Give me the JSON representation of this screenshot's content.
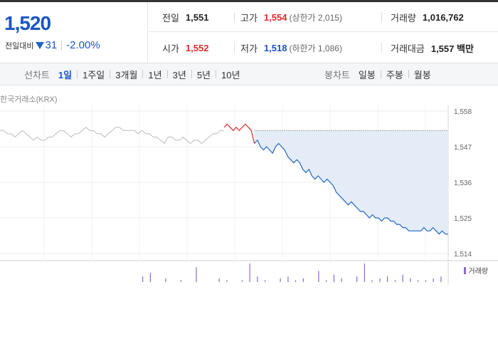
{
  "summary": {
    "price": "1,520",
    "change_label": "전일대비",
    "change_value": "31",
    "change_rate": "-2.00%",
    "prev_label": "전일",
    "prev_value": "1,551",
    "high_label": "고가",
    "high_value": "1,554",
    "high_sub": "(상한가 2,015)",
    "volume_label": "거래량",
    "volume_value": "1,016,762",
    "open_label": "시가",
    "open_value": "1,552",
    "low_label": "저가",
    "low_value": "1,518",
    "low_sub": "(하한가 1,086)",
    "amount_label": "거래대금",
    "amount_value": "1,557 백만"
  },
  "tabs": {
    "line_label": "선차트",
    "line_items": [
      "1일",
      "1주일",
      "3개월",
      "1년",
      "3년",
      "5년",
      "10년"
    ],
    "line_active": "1일",
    "candle_label": "봉차트",
    "candle_items": [
      "일봉",
      "주봉",
      "월봉"
    ]
  },
  "chart": {
    "source_label": "한국거래소(KRX)",
    "volume_legend": "거래량",
    "colors": {
      "up": "#e0282e",
      "down": "#2265c5",
      "pre": "#bbbbbb",
      "fill": "#e4ecf8",
      "volume": "#8a6ad0"
    }
  },
  "chart_data": {
    "type": "line",
    "y_ticks": [
      "1,558",
      "1,547",
      "1,536",
      "1,525",
      "1,514"
    ],
    "ylim": [
      1514,
      1558
    ],
    "reference_value": 1551,
    "premarket_values": [
      1552,
      1552,
      1551,
      1551,
      1550,
      1551,
      1552,
      1551,
      1550,
      1549,
      1550,
      1549,
      1549,
      1550,
      1550,
      1551,
      1552,
      1552,
      1551,
      1550,
      1551,
      1551,
      1552,
      1553,
      1552,
      1552,
      1551,
      1551,
      1550,
      1551,
      1552,
      1553,
      1553,
      1552,
      1552,
      1552,
      1552,
      1551,
      1552,
      1551,
      1551,
      1550,
      1550,
      1549,
      1548,
      1550,
      1550,
      1549,
      1549,
      1550,
      1549,
      1548,
      1549,
      1549,
      1548,
      1549,
      1550,
      1551,
      1551,
      1552,
      1552
    ],
    "intraday_values": [
      1553,
      1554,
      1553,
      1552,
      1553,
      1552,
      1553,
      1554,
      1553,
      1552,
      1548,
      1549,
      1547,
      1546,
      1547,
      1546,
      1545,
      1547,
      1548,
      1547,
      1546,
      1544,
      1543,
      1542,
      1543,
      1542,
      1540,
      1539,
      1540,
      1538,
      1537,
      1538,
      1537,
      1536,
      1537,
      1536,
      1535,
      1533,
      1532,
      1531,
      1530,
      1529,
      1530,
      1529,
      1528,
      1527,
      1527,
      1526,
      1525,
      1526,
      1525,
      1525,
      1524,
      1525,
      1525,
      1524,
      1524,
      1523,
      1523,
      1522,
      1522,
      1521,
      1521,
      1521,
      1521,
      1521,
      1522,
      1521,
      1521,
      1522,
      1521,
      1520,
      1521,
      1520,
      1520
    ],
    "volume_bars": [
      0.3,
      0.5,
      0,
      0.2,
      0,
      0.1,
      0,
      0.8,
      0,
      0,
      0.2,
      0.1,
      0,
      0.1,
      1.0,
      0.3,
      0.1,
      0,
      0.2,
      0.3,
      0.1,
      0.2,
      0,
      0.6,
      0.1,
      0.4,
      0.2,
      0,
      0.3,
      1.0,
      0.1,
      0.2,
      0.3,
      0.1,
      0.4,
      0.2,
      0.1,
      0.1,
      0.2,
      0.3
    ]
  }
}
